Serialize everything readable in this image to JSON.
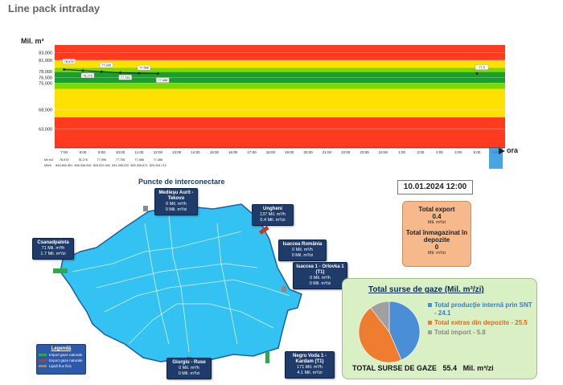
{
  "page": {
    "title": "Line pack intraday"
  },
  "chart_data": {
    "type": "line",
    "ylabel": "Mil. m³",
    "xlabel": "ora",
    "yticks": [
      83000,
      81000,
      78000,
      76500,
      75000,
      68000,
      63000
    ],
    "ylim": [
      58000,
      85000
    ],
    "bands": [
      {
        "from": 81000,
        "to": 85000,
        "color": "#ff3b1f"
      },
      {
        "from": 79000,
        "to": 81000,
        "color": "#ffe000"
      },
      {
        "from": 78000,
        "to": 79000,
        "color": "#7dd700"
      },
      {
        "from": 75000,
        "to": 78000,
        "color": "#1c9e2c"
      },
      {
        "from": 73500,
        "to": 75000,
        "color": "#7dd700"
      },
      {
        "from": 66000,
        "to": 73500,
        "color": "#ffe000"
      },
      {
        "from": 58000,
        "to": 66000,
        "color": "#ff3b1f"
      }
    ],
    "categories": [
      "7:00",
      "8:00",
      "9:00",
      "10:00",
      "11:00",
      "12:00",
      "13:00",
      "14:00",
      "15:00",
      "16:00",
      "17:00",
      "18:00",
      "19:00",
      "20:00",
      "21:00",
      "22:00",
      "23:00",
      "24:00",
      "1:00",
      "2:00",
      "3:00",
      "4:00",
      "5:00",
      "6:00"
    ],
    "series": [
      {
        "values": [
          78.576,
          78.276,
          77.995,
          77.755,
          77.588,
          77.488,
          null,
          null,
          null,
          null,
          null,
          null,
          null,
          null,
          null,
          null,
          null,
          null,
          null,
          null,
          null,
          null,
          77.5,
          null
        ]
      }
    ],
    "point_labels": [
      "78,576",
      "78,276",
      "77,995",
      "77,755",
      "77,588",
      "77,488",
      "",
      "",
      "",
      "",
      "",
      "",
      "",
      "",
      "",
      "",
      "",
      "",
      "",
      "",
      "",
      "",
      "77,5",
      ""
    ],
    "table_rows": [
      {
        "label": "Mil m3",
        "values": [
          "78,576",
          "78,276",
          "77,995",
          "77,755",
          "77,588",
          "77,488"
        ]
      },
      {
        "label": "MWh",
        "values": [
          "840,662,451",
          "836,326,932",
          "833,322,940",
          "831,396,220",
          "829,339,872",
          "829,344,712"
        ]
      }
    ]
  },
  "map": {
    "section_title": "Puncte de interconectare",
    "points": [
      {
        "name": "Medieşu Aurit - Tekovo",
        "lines": [
          "0 Mil. m³/h",
          "0 Mil. m³/zi"
        ]
      },
      {
        "name": "Ungheni",
        "lines": [
          "137 Mil. m³/h",
          "0.4 Mil. m³/zi"
        ]
      },
      {
        "name": "Csanadpalota",
        "lines": [
          "71 Mil. m³/h",
          "1.7 Mil. m³/zi"
        ]
      },
      {
        "name": "Isaccea România",
        "lines": [
          "0 Mil. m³/h",
          "0 Mil. m³/zi"
        ]
      },
      {
        "name": "Isaccea 1 - Orlovka 1 (T1)",
        "lines": [
          "0 Mil. m³/h",
          "0 Mil. m³/zi"
        ]
      },
      {
        "name": "Giurgiu - Ruse",
        "lines": [
          "0 Mil. m³/h",
          "0 Mil. m³/zi"
        ]
      },
      {
        "name": "Negru Voda 1 - Kardam (T1)",
        "lines": [
          "171 Mil. m³/h",
          "4.1 Mil. m³/zi"
        ]
      }
    ],
    "legend": {
      "title": "Legendă",
      "items": [
        {
          "label": "Import gaze naturale",
          "color": "#2fa84f"
        },
        {
          "label": "Export gaze naturale",
          "color": "#c0392b"
        },
        {
          "label": "Lipsă flux fizic",
          "color": "#8a8a8a"
        }
      ]
    },
    "colors": {
      "country": "#33c2f2",
      "border": "#1a5fa8",
      "label_bg": "#1f3b6a"
    }
  },
  "datetime": "10.01.2024 12:00",
  "export_panel": {
    "export_title": "Total export",
    "export_value": "0.4",
    "export_unit": "Mil. m³/zi",
    "storage_title": "Total înmagazinat în depozite",
    "storage_value": "0",
    "storage_unit": "Mil. m³/zi"
  },
  "sources": {
    "title": "Total surse de gaze  (Mil. m³/zi)",
    "pie": [
      {
        "label": "Total producție internă prin SNT - 24.1",
        "value": 24.1,
        "color": "#4a8fd6"
      },
      {
        "label": "Total extras din depozite - 25.5",
        "value": 25.5,
        "color": "#ef7d2f"
      },
      {
        "label": "Total import - 5.8",
        "value": 5.8,
        "color": "#a0a0a0"
      }
    ],
    "total_label": "TOTAL SURSE DE GAZE",
    "total_value": "55.4",
    "total_unit": "Mil. m³/zi"
  }
}
